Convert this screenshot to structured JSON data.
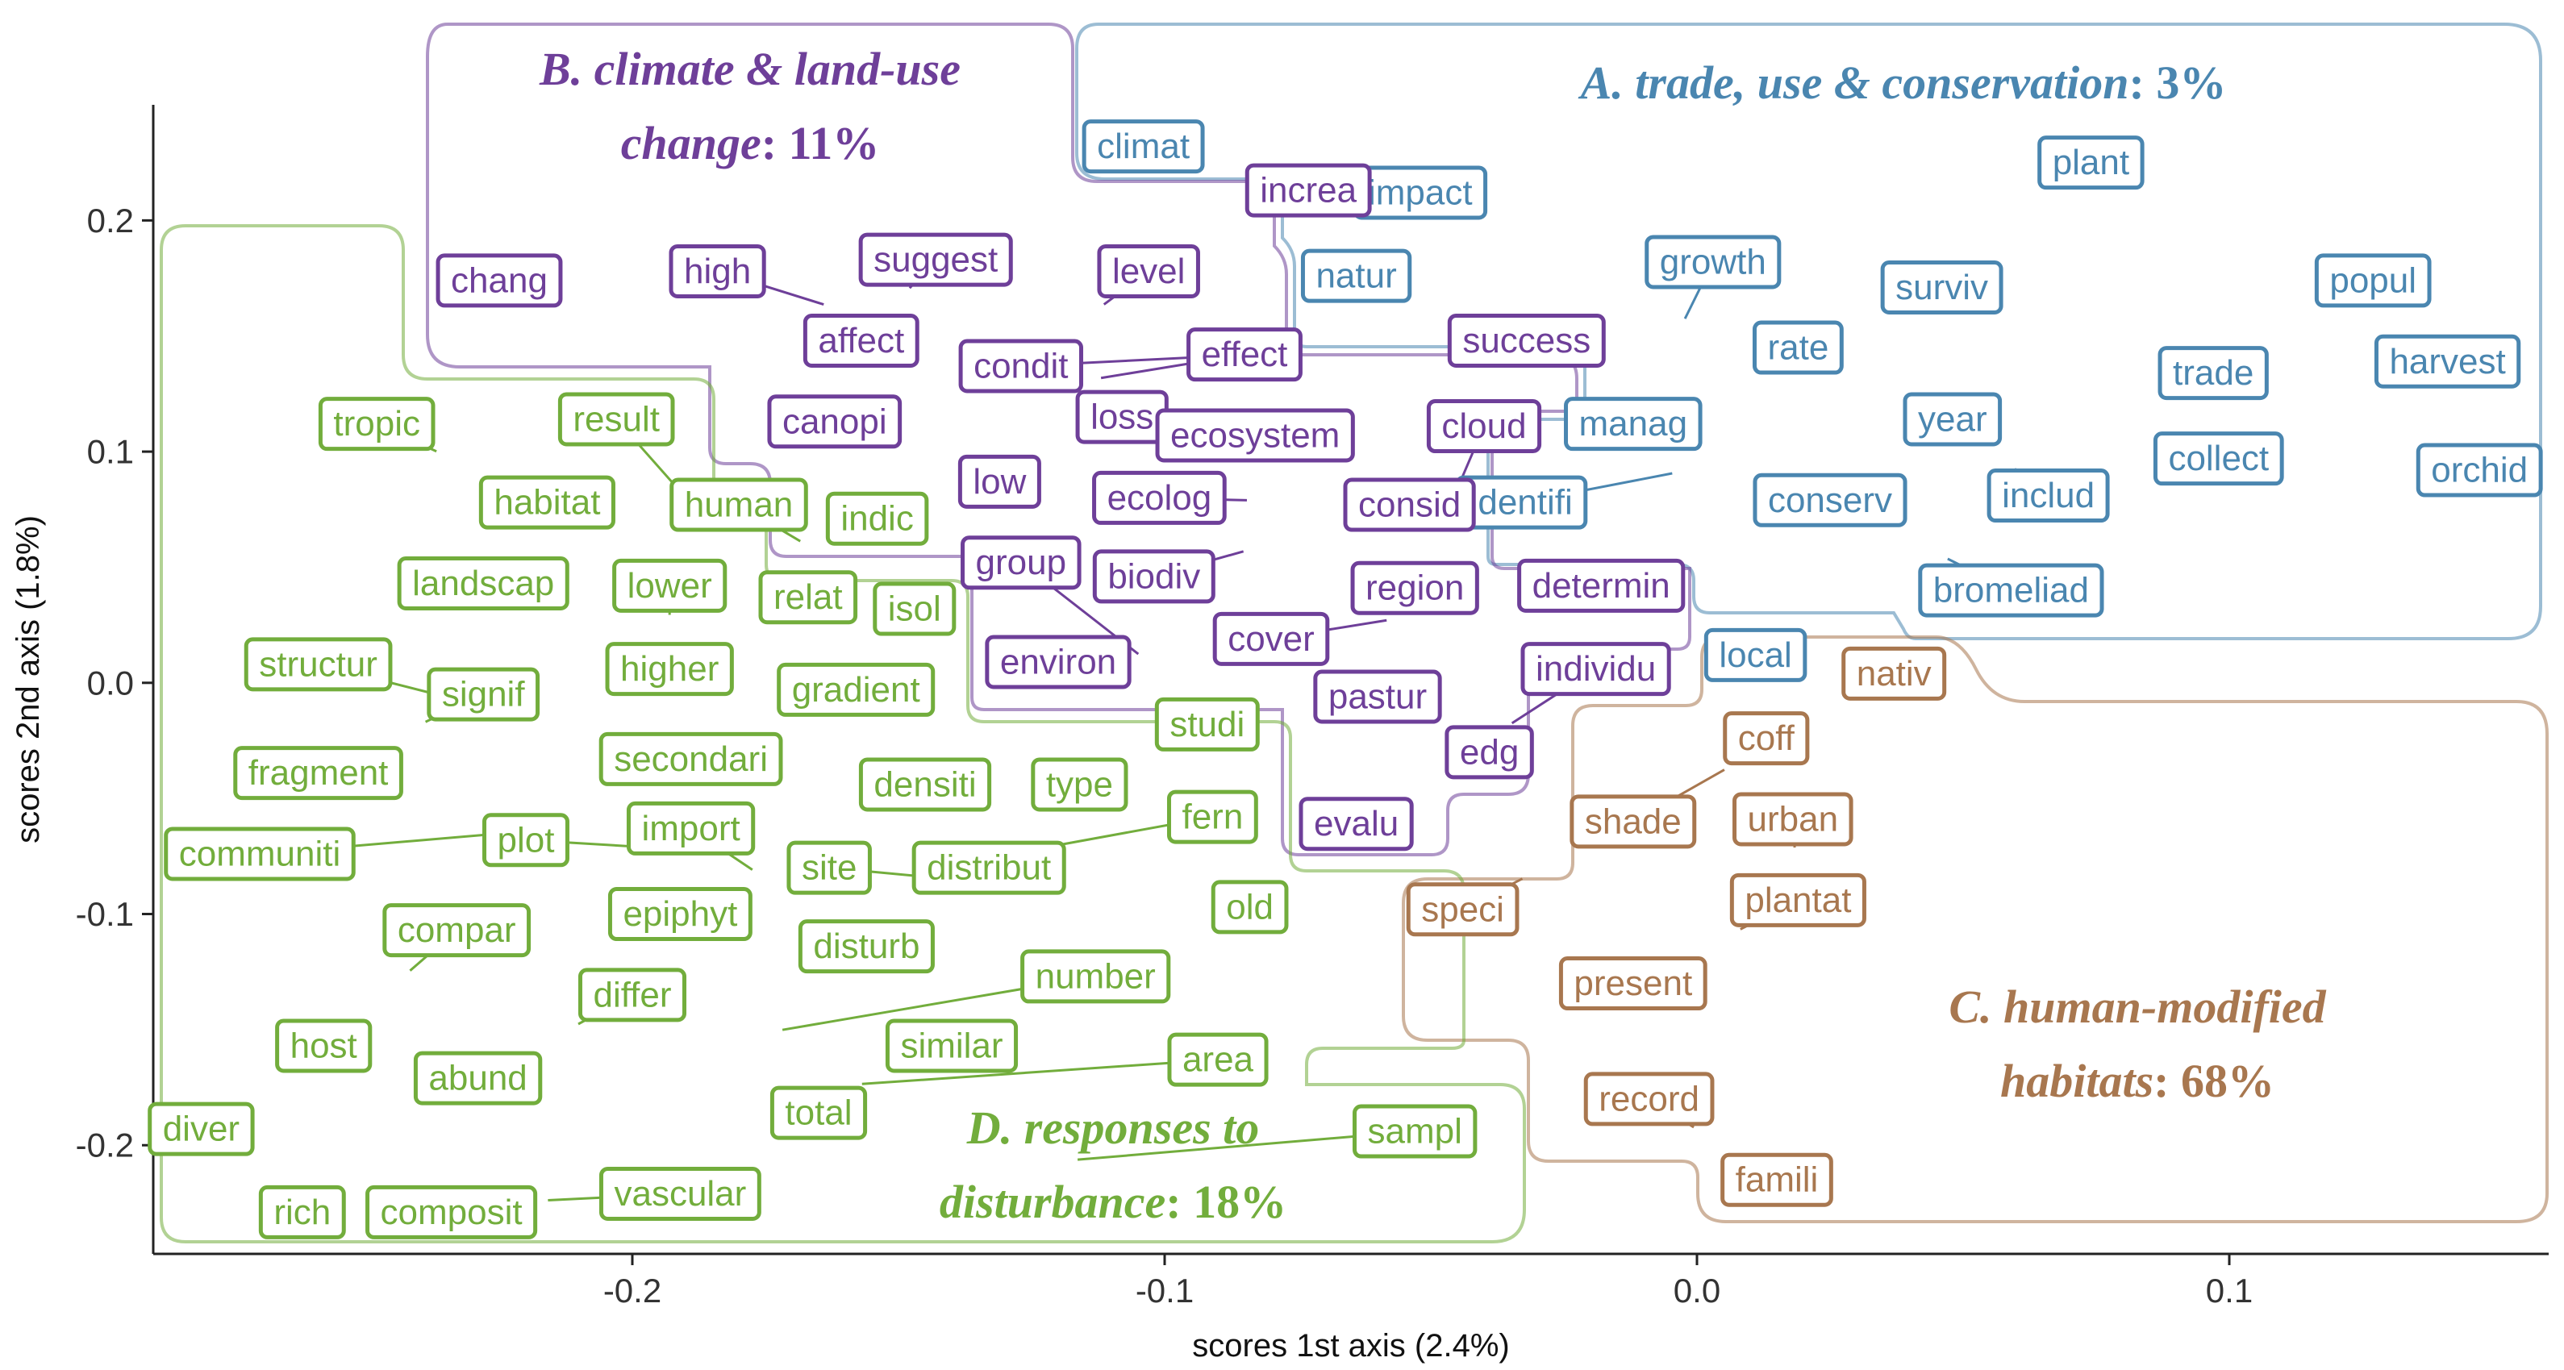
{
  "chart_data": {
    "type": "scatter",
    "xlabel": "scores 1st axis (2.4%)",
    "ylabel": "scores 2nd axis (1.8%)",
    "xlim": [
      -0.29,
      0.16
    ],
    "ylim": [
      -0.247,
      0.25
    ],
    "xticks": [
      -0.2,
      -0.1,
      0.0,
      0.1
    ],
    "yticks": [
      0.2,
      0.1,
      0.0,
      -0.1,
      -0.2
    ],
    "xtick_labels": [
      "-0.2",
      "-0.1",
      "0.0",
      "0.1"
    ],
    "ytick_labels": [
      "0.2",
      "0.1",
      "0.0",
      "-0.1",
      "-0.2"
    ],
    "grid": false,
    "groups": [
      {
        "id": "A",
        "title": "A. trade, use & conservation",
        "percent": ": 3%",
        "color": "#4a86b0"
      },
      {
        "id": "B",
        "title_line1": "B. climate & land-use",
        "title_line2": "change",
        "percent": ": 11%",
        "color": "#6e3f99"
      },
      {
        "id": "C",
        "title_line1": "C. human-modified",
        "title_line2": "habitats",
        "percent": ": 68%",
        "color": "#a8774f"
      },
      {
        "id": "D",
        "title_line1": "D. responses to",
        "title_line2": "disturbance",
        "percent": ": 18%",
        "color": "#72ad3c"
      }
    ],
    "terms": [
      {
        "label": "climat",
        "group": "A",
        "x": -0.104,
        "y": 0.232
      },
      {
        "label": "impact",
        "group": "A",
        "x": -0.052,
        "y": 0.212
      },
      {
        "label": "plant",
        "group": "A",
        "x": 0.074,
        "y": 0.225
      },
      {
        "label": "natur",
        "group": "A",
        "x": -0.064,
        "y": 0.176
      },
      {
        "label": "growth",
        "group": "A",
        "x": 0.003,
        "y": 0.182
      },
      {
        "label": "surviv",
        "group": "A",
        "x": 0.046,
        "y": 0.171
      },
      {
        "label": "popul",
        "group": "A",
        "x": 0.127,
        "y": 0.174
      },
      {
        "label": "rate",
        "group": "A",
        "x": 0.019,
        "y": 0.145
      },
      {
        "label": "trade",
        "group": "A",
        "x": 0.097,
        "y": 0.134
      },
      {
        "label": "harvest",
        "group": "A",
        "x": 0.141,
        "y": 0.139
      },
      {
        "label": "manag",
        "group": "A",
        "x": -0.012,
        "y": 0.112
      },
      {
        "label": "year",
        "group": "A",
        "x": 0.048,
        "y": 0.114
      },
      {
        "label": "collect",
        "group": "A",
        "x": 0.098,
        "y": 0.097
      },
      {
        "label": "orchid",
        "group": "A",
        "x": 0.147,
        "y": 0.092
      },
      {
        "label": "identifi",
        "group": "A",
        "x": -0.033,
        "y": 0.078
      },
      {
        "label": "conserv",
        "group": "A",
        "x": 0.025,
        "y": 0.079
      },
      {
        "label": "includ",
        "group": "A",
        "x": 0.066,
        "y": 0.081
      },
      {
        "label": "bromeliad",
        "group": "A",
        "x": 0.059,
        "y": 0.04
      },
      {
        "label": "local",
        "group": "A",
        "x": 0.011,
        "y": 0.012
      },
      {
        "label": "increa",
        "group": "B",
        "x": -0.073,
        "y": 0.213
      },
      {
        "label": "chang",
        "group": "B",
        "x": -0.225,
        "y": 0.174
      },
      {
        "label": "high",
        "group": "B",
        "x": -0.184,
        "y": 0.178
      },
      {
        "label": "suggest",
        "group": "B",
        "x": -0.143,
        "y": 0.183
      },
      {
        "label": "level",
        "group": "B",
        "x": -0.103,
        "y": 0.178
      },
      {
        "label": "affect",
        "group": "B",
        "x": -0.157,
        "y": 0.148
      },
      {
        "label": "effect",
        "group": "B",
        "x": -0.085,
        "y": 0.142
      },
      {
        "label": "condit",
        "group": "B",
        "x": -0.127,
        "y": 0.137
      },
      {
        "label": "success",
        "group": "B",
        "x": -0.032,
        "y": 0.148
      },
      {
        "label": "canopi",
        "group": "B",
        "x": -0.162,
        "y": 0.113
      },
      {
        "label": "loss",
        "group": "B",
        "x": -0.108,
        "y": 0.115
      },
      {
        "label": "ecosystem",
        "group": "B",
        "x": -0.083,
        "y": 0.107
      },
      {
        "label": "cloud",
        "group": "B",
        "x": -0.04,
        "y": 0.111
      },
      {
        "label": "low",
        "group": "B",
        "x": -0.131,
        "y": 0.087
      },
      {
        "label": "ecolog",
        "group": "B",
        "x": -0.101,
        "y": 0.08
      },
      {
        "label": "consid",
        "group": "B",
        "x": -0.054,
        "y": 0.077
      },
      {
        "label": "group",
        "group": "B",
        "x": -0.127,
        "y": 0.052
      },
      {
        "label": "biodiv",
        "group": "B",
        "x": -0.102,
        "y": 0.046
      },
      {
        "label": "region",
        "group": "B",
        "x": -0.053,
        "y": 0.041
      },
      {
        "label": "determin",
        "group": "B",
        "x": -0.018,
        "y": 0.042
      },
      {
        "label": "environ",
        "group": "B",
        "x": -0.12,
        "y": 0.009
      },
      {
        "label": "cover",
        "group": "B",
        "x": -0.08,
        "y": 0.019
      },
      {
        "label": "pastur",
        "group": "B",
        "x": -0.06,
        "y": -0.006
      },
      {
        "label": "individu",
        "group": "B",
        "x": -0.019,
        "y": 0.006
      },
      {
        "label": "edg",
        "group": "B",
        "x": -0.039,
        "y": -0.03
      },
      {
        "label": "evalu",
        "group": "B",
        "x": -0.064,
        "y": -0.061
      },
      {
        "label": "nativ",
        "group": "C",
        "x": 0.037,
        "y": 0.004
      },
      {
        "label": "coff",
        "group": "C",
        "x": 0.013,
        "y": -0.024
      },
      {
        "label": "shade",
        "group": "C",
        "x": -0.012,
        "y": -0.06
      },
      {
        "label": "urban",
        "group": "C",
        "x": 0.018,
        "y": -0.059
      },
      {
        "label": "speci",
        "group": "C",
        "x": -0.044,
        "y": -0.098
      },
      {
        "label": "plantat",
        "group": "C",
        "x": 0.019,
        "y": -0.094
      },
      {
        "label": "present",
        "group": "C",
        "x": -0.012,
        "y": -0.13
      },
      {
        "label": "record",
        "group": "C",
        "x": -0.009,
        "y": -0.18
      },
      {
        "label": "famili",
        "group": "C",
        "x": 0.015,
        "y": -0.215
      },
      {
        "label": "tropic",
        "group": "D",
        "x": -0.248,
        "y": 0.112
      },
      {
        "label": "result",
        "group": "D",
        "x": -0.203,
        "y": 0.114
      },
      {
        "label": "habitat",
        "group": "D",
        "x": -0.216,
        "y": 0.078
      },
      {
        "label": "human",
        "group": "D",
        "x": -0.18,
        "y": 0.077
      },
      {
        "label": "indic",
        "group": "D",
        "x": -0.154,
        "y": 0.071
      },
      {
        "label": "landscap",
        "group": "D",
        "x": -0.228,
        "y": 0.043
      },
      {
        "label": "lower",
        "group": "D",
        "x": -0.193,
        "y": 0.042
      },
      {
        "label": "relat",
        "group": "D",
        "x": -0.167,
        "y": 0.037
      },
      {
        "label": "isol",
        "group": "D",
        "x": -0.147,
        "y": 0.032
      },
      {
        "label": "structur",
        "group": "D",
        "x": -0.259,
        "y": 0.008
      },
      {
        "label": "higher",
        "group": "D",
        "x": -0.193,
        "y": 0.006
      },
      {
        "label": "signif",
        "group": "D",
        "x": -0.228,
        "y": -0.005
      },
      {
        "label": "gradient",
        "group": "D",
        "x": -0.158,
        "y": -0.003
      },
      {
        "label": "studi",
        "group": "D",
        "x": -0.092,
        "y": -0.018
      },
      {
        "label": "fragment",
        "group": "D",
        "x": -0.259,
        "y": -0.039
      },
      {
        "label": "secondari",
        "group": "D",
        "x": -0.189,
        "y": -0.033
      },
      {
        "label": "densiti",
        "group": "D",
        "x": -0.145,
        "y": -0.044
      },
      {
        "label": "type",
        "group": "D",
        "x": -0.116,
        "y": -0.044
      },
      {
        "label": "communiti",
        "group": "D",
        "x": -0.27,
        "y": -0.074
      },
      {
        "label": "plot",
        "group": "D",
        "x": -0.22,
        "y": -0.068
      },
      {
        "label": "import",
        "group": "D",
        "x": -0.189,
        "y": -0.063
      },
      {
        "label": "fern",
        "group": "D",
        "x": -0.091,
        "y": -0.058
      },
      {
        "label": "site",
        "group": "D",
        "x": -0.163,
        "y": -0.08
      },
      {
        "label": "distribut",
        "group": "D",
        "x": -0.133,
        "y": -0.08
      },
      {
        "label": "compar",
        "group": "D",
        "x": -0.233,
        "y": -0.107
      },
      {
        "label": "epiphyt",
        "group": "D",
        "x": -0.191,
        "y": -0.1
      },
      {
        "label": "old",
        "group": "D",
        "x": -0.084,
        "y": -0.097
      },
      {
        "label": "disturb",
        "group": "D",
        "x": -0.156,
        "y": -0.114
      },
      {
        "label": "differ",
        "group": "D",
        "x": -0.2,
        "y": -0.135
      },
      {
        "label": "number",
        "group": "D",
        "x": -0.113,
        "y": -0.127
      },
      {
        "label": "host",
        "group": "D",
        "x": -0.258,
        "y": -0.157
      },
      {
        "label": "abund",
        "group": "D",
        "x": -0.229,
        "y": -0.171
      },
      {
        "label": "similar",
        "group": "D",
        "x": -0.14,
        "y": -0.157
      },
      {
        "label": "area",
        "group": "D",
        "x": -0.09,
        "y": -0.163
      },
      {
        "label": "diver",
        "group": "D",
        "x": -0.281,
        "y": -0.193
      },
      {
        "label": "total",
        "group": "D",
        "x": -0.165,
        "y": -0.186
      },
      {
        "label": "sampl",
        "group": "D",
        "x": -0.053,
        "y": -0.194
      },
      {
        "label": "vascular",
        "group": "D",
        "x": -0.191,
        "y": -0.221
      },
      {
        "label": "rich",
        "group": "D",
        "x": -0.262,
        "y": -0.229
      },
      {
        "label": "composit",
        "group": "D",
        "x": -0.234,
        "y": -0.229
      }
    ]
  }
}
